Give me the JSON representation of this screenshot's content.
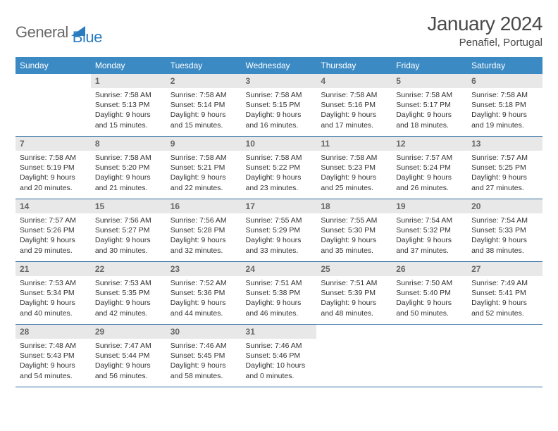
{
  "logo": {
    "general": "General",
    "blue": "Blue",
    "icon_color": "#2b7bc0"
  },
  "title": {
    "month": "January 2024",
    "location": "Penafiel, Portugal"
  },
  "colors": {
    "header_bg": "#3b8ac4",
    "header_text": "#ffffff",
    "daynum_bg": "#e8e8e8",
    "daynum_text": "#666666",
    "row_border": "#2e6da4",
    "body_text": "#333333"
  },
  "weekdays": [
    "Sunday",
    "Monday",
    "Tuesday",
    "Wednesday",
    "Thursday",
    "Friday",
    "Saturday"
  ],
  "weeks": [
    [
      {
        "empty": true
      },
      {
        "n": "1",
        "sr": "Sunrise: 7:58 AM",
        "ss": "Sunset: 5:13 PM",
        "dl": "Daylight: 9 hours and 15 minutes."
      },
      {
        "n": "2",
        "sr": "Sunrise: 7:58 AM",
        "ss": "Sunset: 5:14 PM",
        "dl": "Daylight: 9 hours and 15 minutes."
      },
      {
        "n": "3",
        "sr": "Sunrise: 7:58 AM",
        "ss": "Sunset: 5:15 PM",
        "dl": "Daylight: 9 hours and 16 minutes."
      },
      {
        "n": "4",
        "sr": "Sunrise: 7:58 AM",
        "ss": "Sunset: 5:16 PM",
        "dl": "Daylight: 9 hours and 17 minutes."
      },
      {
        "n": "5",
        "sr": "Sunrise: 7:58 AM",
        "ss": "Sunset: 5:17 PM",
        "dl": "Daylight: 9 hours and 18 minutes."
      },
      {
        "n": "6",
        "sr": "Sunrise: 7:58 AM",
        "ss": "Sunset: 5:18 PM",
        "dl": "Daylight: 9 hours and 19 minutes."
      }
    ],
    [
      {
        "n": "7",
        "sr": "Sunrise: 7:58 AM",
        "ss": "Sunset: 5:19 PM",
        "dl": "Daylight: 9 hours and 20 minutes."
      },
      {
        "n": "8",
        "sr": "Sunrise: 7:58 AM",
        "ss": "Sunset: 5:20 PM",
        "dl": "Daylight: 9 hours and 21 minutes."
      },
      {
        "n": "9",
        "sr": "Sunrise: 7:58 AM",
        "ss": "Sunset: 5:21 PM",
        "dl": "Daylight: 9 hours and 22 minutes."
      },
      {
        "n": "10",
        "sr": "Sunrise: 7:58 AM",
        "ss": "Sunset: 5:22 PM",
        "dl": "Daylight: 9 hours and 23 minutes."
      },
      {
        "n": "11",
        "sr": "Sunrise: 7:58 AM",
        "ss": "Sunset: 5:23 PM",
        "dl": "Daylight: 9 hours and 25 minutes."
      },
      {
        "n": "12",
        "sr": "Sunrise: 7:57 AM",
        "ss": "Sunset: 5:24 PM",
        "dl": "Daylight: 9 hours and 26 minutes."
      },
      {
        "n": "13",
        "sr": "Sunrise: 7:57 AM",
        "ss": "Sunset: 5:25 PM",
        "dl": "Daylight: 9 hours and 27 minutes."
      }
    ],
    [
      {
        "n": "14",
        "sr": "Sunrise: 7:57 AM",
        "ss": "Sunset: 5:26 PM",
        "dl": "Daylight: 9 hours and 29 minutes."
      },
      {
        "n": "15",
        "sr": "Sunrise: 7:56 AM",
        "ss": "Sunset: 5:27 PM",
        "dl": "Daylight: 9 hours and 30 minutes."
      },
      {
        "n": "16",
        "sr": "Sunrise: 7:56 AM",
        "ss": "Sunset: 5:28 PM",
        "dl": "Daylight: 9 hours and 32 minutes."
      },
      {
        "n": "17",
        "sr": "Sunrise: 7:55 AM",
        "ss": "Sunset: 5:29 PM",
        "dl": "Daylight: 9 hours and 33 minutes."
      },
      {
        "n": "18",
        "sr": "Sunrise: 7:55 AM",
        "ss": "Sunset: 5:30 PM",
        "dl": "Daylight: 9 hours and 35 minutes."
      },
      {
        "n": "19",
        "sr": "Sunrise: 7:54 AM",
        "ss": "Sunset: 5:32 PM",
        "dl": "Daylight: 9 hours and 37 minutes."
      },
      {
        "n": "20",
        "sr": "Sunrise: 7:54 AM",
        "ss": "Sunset: 5:33 PM",
        "dl": "Daylight: 9 hours and 38 minutes."
      }
    ],
    [
      {
        "n": "21",
        "sr": "Sunrise: 7:53 AM",
        "ss": "Sunset: 5:34 PM",
        "dl": "Daylight: 9 hours and 40 minutes."
      },
      {
        "n": "22",
        "sr": "Sunrise: 7:53 AM",
        "ss": "Sunset: 5:35 PM",
        "dl": "Daylight: 9 hours and 42 minutes."
      },
      {
        "n": "23",
        "sr": "Sunrise: 7:52 AM",
        "ss": "Sunset: 5:36 PM",
        "dl": "Daylight: 9 hours and 44 minutes."
      },
      {
        "n": "24",
        "sr": "Sunrise: 7:51 AM",
        "ss": "Sunset: 5:38 PM",
        "dl": "Daylight: 9 hours and 46 minutes."
      },
      {
        "n": "25",
        "sr": "Sunrise: 7:51 AM",
        "ss": "Sunset: 5:39 PM",
        "dl": "Daylight: 9 hours and 48 minutes."
      },
      {
        "n": "26",
        "sr": "Sunrise: 7:50 AM",
        "ss": "Sunset: 5:40 PM",
        "dl": "Daylight: 9 hours and 50 minutes."
      },
      {
        "n": "27",
        "sr": "Sunrise: 7:49 AM",
        "ss": "Sunset: 5:41 PM",
        "dl": "Daylight: 9 hours and 52 minutes."
      }
    ],
    [
      {
        "n": "28",
        "sr": "Sunrise: 7:48 AM",
        "ss": "Sunset: 5:43 PM",
        "dl": "Daylight: 9 hours and 54 minutes."
      },
      {
        "n": "29",
        "sr": "Sunrise: 7:47 AM",
        "ss": "Sunset: 5:44 PM",
        "dl": "Daylight: 9 hours and 56 minutes."
      },
      {
        "n": "30",
        "sr": "Sunrise: 7:46 AM",
        "ss": "Sunset: 5:45 PM",
        "dl": "Daylight: 9 hours and 58 minutes."
      },
      {
        "n": "31",
        "sr": "Sunrise: 7:46 AM",
        "ss": "Sunset: 5:46 PM",
        "dl": "Daylight: 10 hours and 0 minutes."
      },
      {
        "empty": true
      },
      {
        "empty": true
      },
      {
        "empty": true
      }
    ]
  ]
}
